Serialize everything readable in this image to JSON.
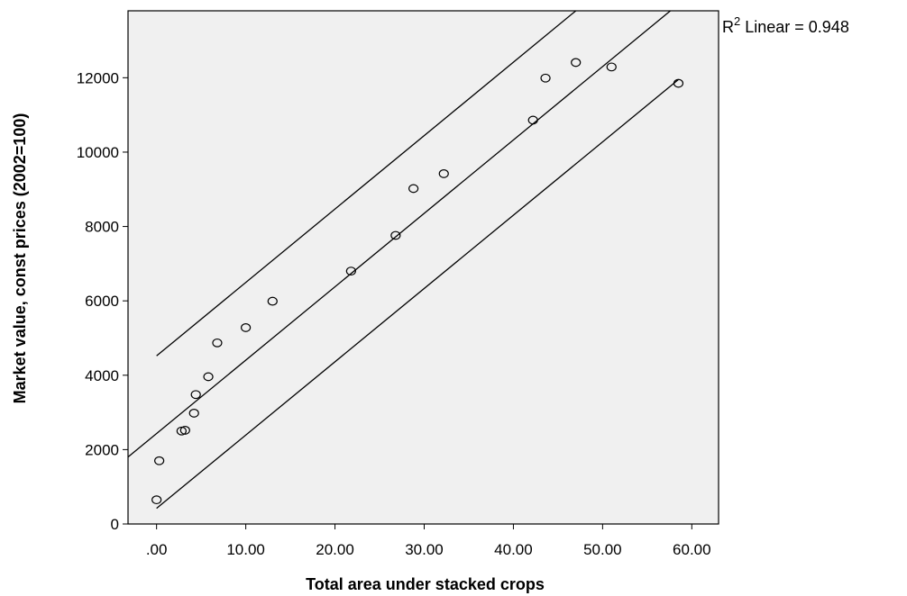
{
  "chart_data": {
    "type": "scatter",
    "title": "",
    "xlabel": "Total area under stacked crops",
    "ylabel": "Market value, const prices (2002=100)",
    "xlim": [
      -3.2,
      63
    ],
    "ylim": [
      0,
      13800
    ],
    "xticks": [
      ".00",
      "10.00",
      "20.00",
      "30.00",
      "40.00",
      "50.00",
      "60.00"
    ],
    "xtick_values": [
      0,
      10,
      20,
      30,
      40,
      50,
      60
    ],
    "yticks": [
      "0",
      "2000",
      "4000",
      "6000",
      "8000",
      "10000",
      "12000"
    ],
    "ytick_values": [
      0,
      2000,
      4000,
      6000,
      8000,
      10000,
      12000
    ],
    "grid": false,
    "plot_background": "#f0f0f0",
    "marker": "open-circle",
    "annotation": {
      "r2_prefix": "R",
      "r2_sup": "2",
      "r2_text": " Linear = 0.948"
    },
    "points": [
      {
        "x": 0.0,
        "y": 650
      },
      {
        "x": 0.3,
        "y": 1700
      },
      {
        "x": 2.8,
        "y": 2500
      },
      {
        "x": 3.2,
        "y": 2520
      },
      {
        "x": 4.2,
        "y": 2980
      },
      {
        "x": 4.4,
        "y": 3480
      },
      {
        "x": 5.8,
        "y": 3960
      },
      {
        "x": 6.8,
        "y": 4870
      },
      {
        "x": 10.0,
        "y": 5280
      },
      {
        "x": 13.0,
        "y": 5990
      },
      {
        "x": 21.8,
        "y": 6800
      },
      {
        "x": 26.8,
        "y": 7760
      },
      {
        "x": 28.8,
        "y": 9020
      },
      {
        "x": 32.2,
        "y": 9420
      },
      {
        "x": 42.2,
        "y": 10860
      },
      {
        "x": 43.6,
        "y": 11990
      },
      {
        "x": 47.0,
        "y": 12410
      },
      {
        "x": 51.0,
        "y": 12290
      },
      {
        "x": 58.5,
        "y": 11850
      }
    ],
    "fit_lines": [
      {
        "name": "fit",
        "x": [
          -3.2,
          57.6
        ],
        "y": [
          1800,
          13800
        ]
      },
      {
        "name": "upper",
        "x": [
          0.0,
          47.0
        ],
        "y": [
          4520,
          13800
        ]
      },
      {
        "name": "lower",
        "x": [
          0.0,
          58.5
        ],
        "y": [
          420,
          11950
        ]
      }
    ]
  }
}
